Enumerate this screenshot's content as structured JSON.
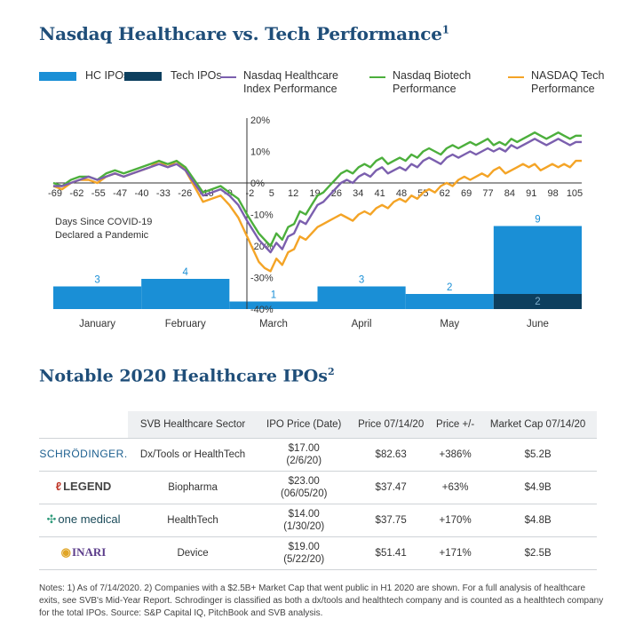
{
  "title": "Nasdaq Healthcare vs. Tech Performance",
  "title_sup": "1",
  "legend": {
    "hc_ipos": "HC IPOs",
    "tech_ipos": "Tech IPOs",
    "nasdaq_hc": [
      "Nasdaq Healthcare",
      "Index Performance"
    ],
    "nasdaq_bio": [
      "Nasdaq Biotech",
      "Performance"
    ],
    "nasdaq_tech": [
      "NASDAQ Tech",
      "Performance"
    ]
  },
  "colors": {
    "hc_ipos": "#1a8fd6",
    "tech_ipos": "#0d3f5e",
    "nasdaq_hc": "#7b5fae",
    "nasdaq_bio": "#4caf3c",
    "nasdaq_tech": "#f4a426",
    "title": "#1f4e79",
    "bar_label": "#1a8fd6"
  },
  "annotation": [
    "Days Since COVID-19",
    "Declared a Pandemic"
  ],
  "chart_data": {
    "type": "line",
    "x": [
      -69,
      -66,
      -63,
      -60,
      -57,
      -54,
      -51,
      -48,
      -45,
      -42,
      -39,
      -36,
      -33,
      -30,
      -27,
      -24,
      -21,
      -18,
      -15,
      -12,
      -9,
      -6,
      -3,
      -1,
      1,
      3,
      5,
      7,
      9,
      11,
      13,
      15,
      17,
      19,
      21,
      23,
      25,
      27,
      29,
      31,
      33,
      35,
      37,
      39,
      41,
      43,
      45,
      47,
      49,
      51,
      53,
      55,
      57,
      59,
      61,
      63,
      65,
      67,
      69,
      71,
      73,
      75,
      77,
      79,
      81,
      83,
      85,
      87,
      89,
      91,
      93,
      95,
      97,
      99,
      101,
      103,
      105,
      107,
      109,
      111
    ],
    "x_tick_labels": [
      "-69",
      "-62",
      "-55",
      "-47",
      "-40",
      "-33",
      "-26",
      "-16",
      "-9",
      "-2",
      "5",
      "12",
      "19",
      "26",
      "34",
      "41",
      "48",
      "55",
      "62",
      "69",
      "77",
      "84",
      "91",
      "98",
      "105"
    ],
    "y_tick_labels": [
      "20%",
      "10%",
      "0%",
      "-10%",
      "-20%",
      "-30%",
      "-40%"
    ],
    "ylim": [
      -40,
      20
    ],
    "series": [
      {
        "name": "Nasdaq Healthcare Index Performance",
        "values": [
          -1,
          -1,
          0,
          1,
          2,
          1,
          2,
          3,
          2,
          3,
          4,
          5,
          6,
          5,
          6,
          4,
          0,
          -4,
          -3,
          -2,
          -4,
          -7,
          -12,
          -15,
          -18,
          -20,
          -22,
          -19,
          -21,
          -17,
          -16,
          -12,
          -13,
          -10,
          -7,
          -6,
          -4,
          -2,
          0,
          1,
          0,
          2,
          3,
          2,
          4,
          5,
          3,
          4,
          5,
          4,
          6,
          5,
          7,
          8,
          7,
          6,
          8,
          9,
          8,
          9,
          10,
          9,
          10,
          11,
          10,
          11,
          10,
          12,
          11,
          12,
          13,
          14,
          13,
          12,
          13,
          14,
          13,
          12,
          13,
          13
        ]
      },
      {
        "name": "Nasdaq Biotech Performance",
        "values": [
          0,
          -1,
          1,
          2,
          2,
          1,
          3,
          4,
          3,
          4,
          5,
          6,
          7,
          6,
          7,
          5,
          1,
          -3,
          -2,
          -1,
          -3,
          -5,
          -10,
          -13,
          -16,
          -18,
          -20,
          -16,
          -18,
          -14,
          -13,
          -9,
          -10,
          -7,
          -4,
          -3,
          -1,
          1,
          3,
          4,
          3,
          5,
          6,
          5,
          7,
          8,
          6,
          7,
          8,
          7,
          9,
          8,
          10,
          11,
          10,
          9,
          11,
          12,
          11,
          12,
          13,
          12,
          13,
          14,
          12,
          13,
          12,
          14,
          13,
          14,
          15,
          16,
          15,
          14,
          15,
          16,
          15,
          14,
          15,
          15
        ]
      },
      {
        "name": "NASDAQ Tech Performance",
        "values": [
          -1,
          -2,
          0,
          1,
          1,
          0,
          2,
          3,
          2,
          3,
          4,
          5,
          7,
          5,
          7,
          4,
          -1,
          -6,
          -5,
          -4,
          -7,
          -11,
          -17,
          -21,
          -25,
          -27,
          -28,
          -24,
          -26,
          -22,
          -21,
          -17,
          -18,
          -16,
          -14,
          -13,
          -12,
          -11,
          -10,
          -11,
          -12,
          -10,
          -9,
          -10,
          -8,
          -7,
          -8,
          -6,
          -5,
          -6,
          -4,
          -5,
          -3,
          -2,
          -3,
          -1,
          0,
          -1,
          1,
          2,
          1,
          2,
          3,
          2,
          4,
          5,
          3,
          4,
          5,
          6,
          5,
          6,
          4,
          5,
          6,
          5,
          6,
          5,
          7,
          7
        ]
      }
    ],
    "bars": {
      "categories": [
        "January",
        "February",
        "March",
        "April",
        "May",
        "June"
      ],
      "hc_ipos": [
        3,
        4,
        1,
        3,
        2,
        9
      ],
      "tech_ipos": [
        0,
        0,
        0,
        0,
        0,
        2
      ],
      "hc_labels": [
        "3",
        "4",
        "1",
        "3",
        "2",
        "9"
      ],
      "tech_labels": [
        "",
        "",
        "",
        "",
        "",
        "2"
      ]
    }
  },
  "subtitle": "Notable 2020 Healthcare IPOs",
  "subtitle_sup": "2",
  "table": {
    "headers": [
      "",
      "SVB Healthcare Sector",
      "IPO Price (Date)",
      "Price 07/14/20",
      "Price +/-",
      "Market Cap 07/14/20"
    ],
    "rows": [
      {
        "logo": "SCHRÖDINGER.",
        "sector": "Dx/Tools or HealthTech",
        "ipo_price": "$17.00",
        "ipo_date": "(2/6/20)",
        "price": "$82.63",
        "change": "+386%",
        "cap": "$5.2B"
      },
      {
        "logo": "LEGEND",
        "logo_icon": "ℓ",
        "sector": "Biopharma",
        "ipo_price": "$23.00",
        "ipo_date": "(06/05/20)",
        "price": "$37.47",
        "change": "+63%",
        "cap": "$4.9B"
      },
      {
        "logo": "one medical",
        "logo_icon": "✣",
        "sector": "HealthTech",
        "ipo_price": "$14.00",
        "ipo_date": "(1/30/20)",
        "price": "$37.75",
        "change": "+170%",
        "cap": "$4.8B"
      },
      {
        "logo": "INARI",
        "logo_icon": "◉",
        "sector": "Device",
        "ipo_price": "$19.00",
        "ipo_date": "(5/22/20)",
        "price": "$51.41",
        "change": "+171%",
        "cap": "$2.5B"
      }
    ]
  },
  "notes": "Notes: 1) As of 7/14/2020. 2) Companies with a $2.5B+ Market Cap that went public in H1 2020 are shown. For a full analysis of healthcare exits, see SVB's Mid-Year Report. Schrodinger is classified as both a dx/tools and healthtech company and is counted as a healthtech company for the total IPOs. Source: S&P Capital IQ, PitchBook and SVB analysis."
}
